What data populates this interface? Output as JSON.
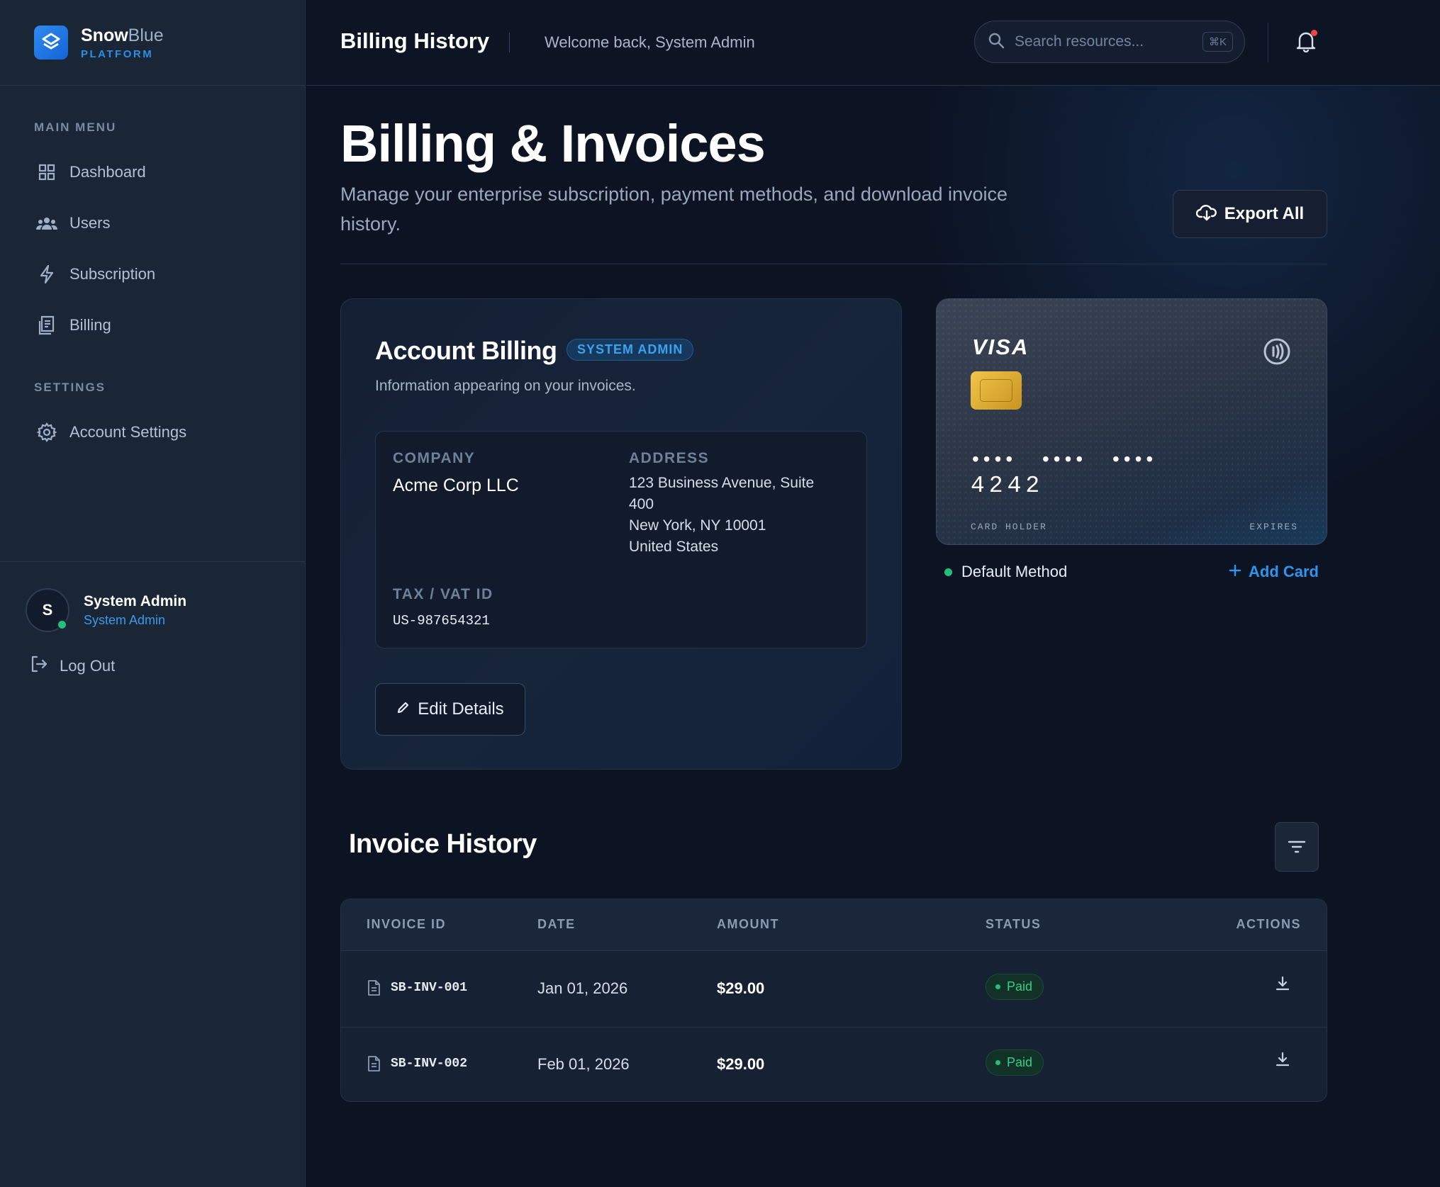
{
  "brand": {
    "name_bold": "Snow",
    "name_light": "Blue",
    "subtitle": "PLATFORM"
  },
  "sidebar": {
    "main_menu_label": "MAIN MENU",
    "items": [
      {
        "label": "Dashboard",
        "icon": "grid-icon"
      },
      {
        "label": "Users",
        "icon": "users-icon"
      },
      {
        "label": "Subscription",
        "icon": "lightning-icon"
      },
      {
        "label": "Billing",
        "icon": "receipt-icon"
      }
    ],
    "settings_label": "SETTINGS",
    "settings_items": [
      {
        "label": "Account Settings",
        "icon": "gear-icon"
      }
    ],
    "user": {
      "initial": "S",
      "name": "System Admin",
      "role": "System Admin"
    },
    "logout_label": "Log Out"
  },
  "topbar": {
    "title": "Billing History",
    "welcome": "Welcome back, System Admin",
    "search_placeholder": "Search resources...",
    "search_shortcut": "⌘K"
  },
  "page": {
    "title": "Billing & Invoices",
    "description": "Manage your enterprise subscription, payment methods, and download invoice history.",
    "export_label": "Export All"
  },
  "account": {
    "title": "Account Billing",
    "badge": "SYSTEM ADMIN",
    "description": "Information appearing on your invoices.",
    "company_label": "COMPANY",
    "company": "Acme Corp LLC",
    "address_label": "ADDRESS",
    "address_lines": [
      "123 Business Avenue, Suite",
      "400",
      "New York, NY 10001",
      "United States"
    ],
    "tax_label": "TAX / VAT ID",
    "tax_id": "US-987654321",
    "edit_label": "Edit Details"
  },
  "card": {
    "brand": "VISA",
    "masked": "•••• •••• ••••",
    "last4": "4242",
    "holder_label": "CARD HOLDER",
    "expires_label": "EXPIRES",
    "default_label": "Default Method",
    "add_label": "Add Card"
  },
  "invoices": {
    "title": "Invoice History",
    "columns": [
      "INVOICE ID",
      "DATE",
      "AMOUNT",
      "STATUS",
      "ACTIONS"
    ],
    "rows": [
      {
        "id": "SB-INV-001",
        "date": "Jan 01, 2026",
        "amount": "$29.00",
        "status": "Paid"
      },
      {
        "id": "SB-INV-002",
        "date": "Feb 01, 2026",
        "amount": "$29.00",
        "status": "Paid"
      }
    ]
  },
  "colors": {
    "accent": "#2f95ec",
    "success": "#22c07a",
    "background": "#0c1424",
    "sidebar": "#1a2536"
  }
}
